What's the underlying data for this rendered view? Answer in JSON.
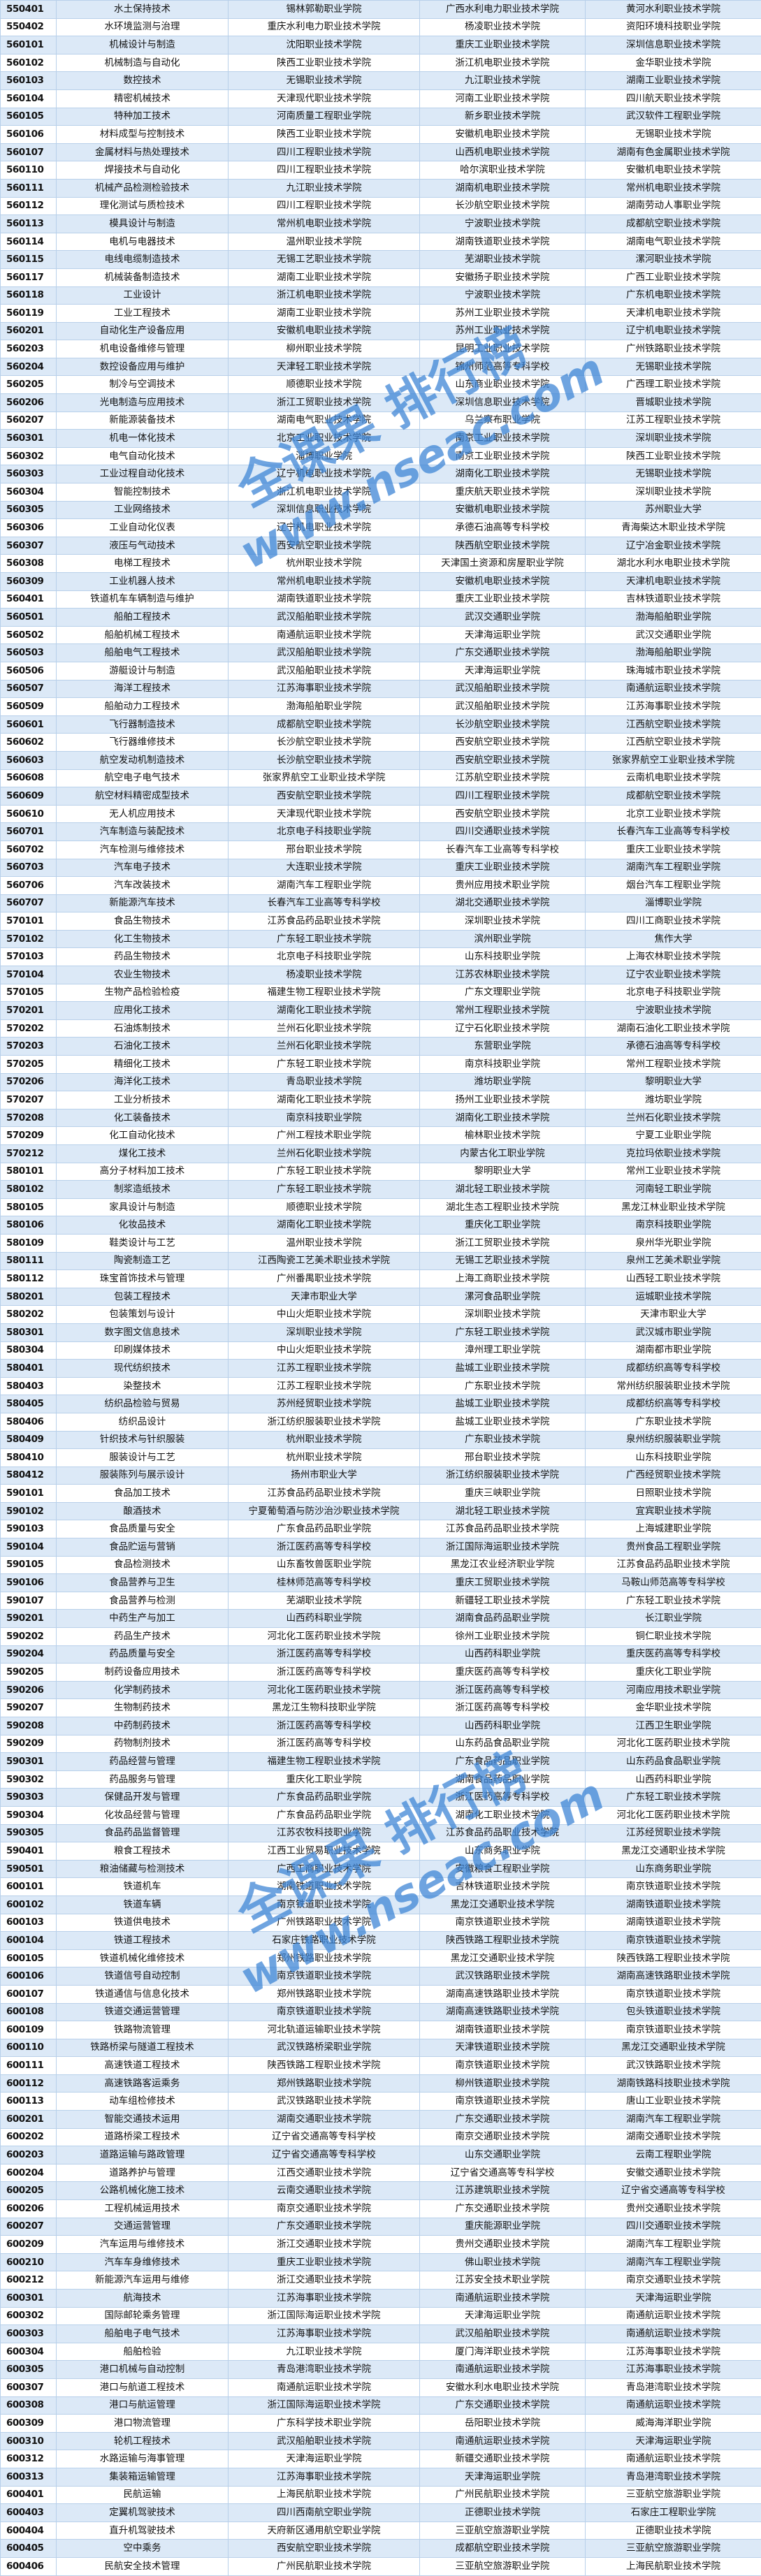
{
  "watermark": {
    "line1": "全课果 排行榜",
    "line2": "www.nseac.com",
    "color": "#3f86d6"
  },
  "colors": {
    "row_alt": "#dce9f7",
    "row": "#ffffff",
    "border": "#b8d0ea"
  },
  "rows": [
    [
      "550401",
      "水土保持技术",
      "锡林郭勒职业学院",
      "广西水利电力职业技术学院",
      "黄河水利职业技术学院"
    ],
    [
      "550402",
      "水环境监测与治理",
      "重庆水利电力职业技术学院",
      "杨凌职业技术学院",
      "资阳环境科技职业学院"
    ],
    [
      "560101",
      "机械设计与制造",
      "沈阳职业技术学院",
      "重庆工业职业技术学院",
      "深圳信息职业技术学院"
    ],
    [
      "560102",
      "机械制造与自动化",
      "陕西工业职业技术学院",
      "浙江机电职业技术学院",
      "金华职业技术学院"
    ],
    [
      "560103",
      "数控技术",
      "无锡职业技术学院",
      "九江职业技术学院",
      "湖南工业职业技术学院"
    ],
    [
      "560104",
      "精密机械技术",
      "天津现代职业技术学院",
      "河南工业职业技术学院",
      "四川航天职业技术学院"
    ],
    [
      "560105",
      "特种加工技术",
      "河南质量工程职业学院",
      "新乡职业技术学院",
      "武汉软件工程职业学院"
    ],
    [
      "560106",
      "材料成型与控制技术",
      "陕西工业职业技术学院",
      "安徽机电职业技术学院",
      "无锡职业技术学院"
    ],
    [
      "560107",
      "金属材料与热处理技术",
      "四川工程职业技术学院",
      "山西机电职业技术学院",
      "湖南有色金属职业技术学院"
    ],
    [
      "560110",
      "焊接技术与自动化",
      "四川工程职业技术学院",
      "哈尔滨职业技术学院",
      "安徽机电职业技术学院"
    ],
    [
      "560111",
      "机械产品检测检验技术",
      "九江职业技术学院",
      "湖南机电职业技术学院",
      "常州机电职业技术学院"
    ],
    [
      "560112",
      "理化测试与质检技术",
      "四川工程职业技术学院",
      "长沙航空职业技术学院",
      "湖南劳动人事职业学院"
    ],
    [
      "560113",
      "模具设计与制造",
      "常州机电职业技术学院",
      "宁波职业技术学院",
      "成都航空职业技术学院"
    ],
    [
      "560114",
      "电机与电器技术",
      "温州职业技术学院",
      "湖南铁道职业技术学院",
      "湖南电气职业技术学院"
    ],
    [
      "560115",
      "电线电缆制造技术",
      "无锡工艺职业技术学院",
      "芜湖职业技术学院",
      "漯河职业技术学院"
    ],
    [
      "560117",
      "机械装备制造技术",
      "湖南工业职业技术学院",
      "安徽扬子职业技术学院",
      "广西工业职业技术学院"
    ],
    [
      "560118",
      "工业设计",
      "浙江机电职业技术学院",
      "宁波职业技术学院",
      "广东机电职业技术学院"
    ],
    [
      "560119",
      "工业工程技术",
      "湖南工业职业技术学院",
      "苏州工业职业技术学院",
      "天津机电职业技术学院"
    ],
    [
      "560201",
      "自动化生产设备应用",
      "安徽机电职业技术学院",
      "苏州工业职业技术学院",
      "辽宁机电职业技术学院"
    ],
    [
      "560203",
      "机电设备维修与管理",
      "柳州职业技术学院",
      "昆明工业职业技术学院",
      "广州铁路职业技术学院"
    ],
    [
      "560204",
      "数控设备应用与维护",
      "天津轻工职业技术学院",
      "锦州师范高等专科学校",
      "无锡职业技术学院"
    ],
    [
      "560205",
      "制冷与空调技术",
      "顺德职业技术学院",
      "山东商业职业技术学院",
      "广西理工职业技术学院"
    ],
    [
      "560206",
      "光电制造与应用技术",
      "浙江工贸职业技术学院",
      "深圳信息职业技术学院",
      "晋城职业技术学院"
    ],
    [
      "560207",
      "新能源装备技术",
      "湖南电气职业技术学院",
      "乌兰察布职业学院",
      "江苏工程职业技术学院"
    ],
    [
      "560301",
      "机电一体化技术",
      "北京工业职业技术学院",
      "南京工业职业技术学院",
      "深圳职业技术学院"
    ],
    [
      "560302",
      "电气自动化技术",
      "淄博职业学院",
      "南京工业职业技术学院",
      "陕西工业职业技术学院"
    ],
    [
      "560303",
      "工业过程自动化技术",
      "辽宁机电职业技术学院",
      "湖南化工职业技术学院",
      "无锡职业技术学院"
    ],
    [
      "560304",
      "智能控制技术",
      "浙江机电职业技术学院",
      "重庆航天职业技术学院",
      "深圳职业技术学院"
    ],
    [
      "560305",
      "工业网络技术",
      "深圳信息职业技术学院",
      "安徽机电职业技术学院",
      "苏州职业大学"
    ],
    [
      "560306",
      "工业自动化仪表",
      "辽宁机电职业技术学院",
      "承德石油高等专科学校",
      "青海柴达木职业技术学院"
    ],
    [
      "560307",
      "液压与气动技术",
      "西安航空职业技术学院",
      "陕西航空职业技术学院",
      "辽宁冶金职业技术学院"
    ],
    [
      "560308",
      "电梯工程技术",
      "杭州职业技术学院",
      "天津国土资源和房屋职业学院",
      "湖北水利水电职业技术学院"
    ],
    [
      "560309",
      "工业机器人技术",
      "常州机电职业技术学院",
      "安徽机电职业技术学院",
      "天津机电职业技术学院"
    ],
    [
      "560401",
      "铁道机车车辆制造与维护",
      "湖南铁道职业技术学院",
      "重庆工业职业技术学院",
      "吉林铁道职业技术学院"
    ],
    [
      "560501",
      "船舶工程技术",
      "武汉船舶职业技术学院",
      "武汉交通职业学院",
      "渤海船舶职业学院"
    ],
    [
      "560502",
      "船舶机械工程技术",
      "南通航运职业技术学院",
      "天津海运职业学院",
      "武汉交通职业学院"
    ],
    [
      "560503",
      "船舶电气工程技术",
      "武汉船舶职业技术学院",
      "广东交通职业技术学院",
      "渤海船舶职业学院"
    ],
    [
      "560506",
      "游艇设计与制造",
      "武汉船舶职业技术学院",
      "天津海运职业学院",
      "珠海城市职业技术学院"
    ],
    [
      "560507",
      "海洋工程技术",
      "江苏海事职业技术学院",
      "武汉船舶职业技术学院",
      "南通航运职业技术学院"
    ],
    [
      "560509",
      "船舶动力工程技术",
      "渤海船舶职业学院",
      "武汉船舶职业技术学院",
      "江苏海事职业技术学院"
    ],
    [
      "560601",
      "飞行器制造技术",
      "成都航空职业技术学院",
      "长沙航空职业技术学院",
      "江西航空职业技术学院"
    ],
    [
      "560602",
      "飞行器维修技术",
      "长沙航空职业技术学院",
      "西安航空职业技术学院",
      "江西航空职业技术学院"
    ],
    [
      "560603",
      "航空发动机制造技术",
      "长沙航空职业技术学院",
      "西安航空职业技术学院",
      "张家界航空工业职业技术学院"
    ],
    [
      "560608",
      "航空电子电气技术",
      "张家界航空工业职业技术学院",
      "江苏航空职业技术学院",
      "云南机电职业技术学院"
    ],
    [
      "560609",
      "航空材料精密成型技术",
      "西安航空职业技术学院",
      "四川工程职业技术学院",
      "成都航空职业技术学院"
    ],
    [
      "560610",
      "无人机应用技术",
      "天津现代职业技术学院",
      "西安航空职业技术学院",
      "北京工业职业技术学院"
    ],
    [
      "560701",
      "汽车制造与装配技术",
      "北京电子科技职业学院",
      "四川交通职业技术学院",
      "长春汽车工业高等专科学校"
    ],
    [
      "560702",
      "汽车检测与维修技术",
      "邢台职业技术学院",
      "长春汽车工业高等专科学校",
      "重庆工业职业技术学院"
    ],
    [
      "560703",
      "汽车电子技术",
      "大连职业技术学院",
      "重庆工业职业技术学院",
      "湖南汽车工程职业学院"
    ],
    [
      "560706",
      "汽车改装技术",
      "湖南汽车工程职业学院",
      "贵州应用技术职业学院",
      "烟台汽车工程职业学院"
    ],
    [
      "560707",
      "新能源汽车技术",
      "长春汽车工业高等专科学校",
      "湖北交通职业技术学院",
      "淄博职业学院"
    ],
    [
      "570101",
      "食品生物技术",
      "江苏食品药品职业技术学院",
      "深圳职业技术学院",
      "四川工商职业技术学院"
    ],
    [
      "570102",
      "化工生物技术",
      "广东轻工职业技术学院",
      "滨州职业学院",
      "焦作大学"
    ],
    [
      "570103",
      "药品生物技术",
      "北京电子科技职业学院",
      "山东科技职业学院",
      "上海农林职业技术学院"
    ],
    [
      "570104",
      "农业生物技术",
      "杨凌职业技术学院",
      "江苏农林职业技术学院",
      "辽宁农业职业技术学院"
    ],
    [
      "570105",
      "生物产品检验检疫",
      "福建生物工程职业技术学院",
      "广东文理职业学院",
      "北京电子科技职业学院"
    ],
    [
      "570201",
      "应用化工技术",
      "湖南化工职业技术学院",
      "常州工程职业技术学院",
      "宁波职业技术学院"
    ],
    [
      "570202",
      "石油炼制技术",
      "兰州石化职业技术学院",
      "辽宁石化职业技术学院",
      "湖南石油化工职业技术学院"
    ],
    [
      "570203",
      "石油化工技术",
      "兰州石化职业技术学院",
      "东营职业学院",
      "承德石油高等专科学校"
    ],
    [
      "570205",
      "精细化工技术",
      "广东轻工职业技术学院",
      "南京科技职业学院",
      "常州工程职业技术学院"
    ],
    [
      "570206",
      "海洋化工技术",
      "青岛职业技术学院",
      "潍坊职业学院",
      "黎明职业大学"
    ],
    [
      "570207",
      "工业分析技术",
      "湖南化工职业技术学院",
      "扬州工业职业技术学院",
      "潍坊职业学院"
    ],
    [
      "570208",
      "化工装备技术",
      "南京科技职业学院",
      "湖南化工职业技术学院",
      "兰州石化职业技术学院"
    ],
    [
      "570209",
      "化工自动化技术",
      "广州工程技术职业学院",
      "榆林职业技术学院",
      "宁夏工业职业学院"
    ],
    [
      "570212",
      "煤化工技术",
      "兰州石化职业技术学院",
      "内蒙古化工职业学院",
      "克拉玛依职业技术学院"
    ],
    [
      "580101",
      "高分子材料加工技术",
      "广东轻工职业技术学院",
      "黎明职业大学",
      "常州工业职业技术学院"
    ],
    [
      "580102",
      "制浆造纸技术",
      "广东轻工职业技术学院",
      "湖北轻工职业技术学院",
      "河南轻工职业学院"
    ],
    [
      "580105",
      "家具设计与制造",
      "顺德职业技术学院",
      "湖北生态工程职业技术学院",
      "黑龙江林业职业技术学院"
    ],
    [
      "580106",
      "化妆品技术",
      "湖南化工职业技术学院",
      "重庆化工职业学院",
      "南京科技职业学院"
    ],
    [
      "580109",
      "鞋类设计与工艺",
      "温州职业技术学院",
      "浙江工贸职业技术学院",
      "泉州华光职业学院"
    ],
    [
      "580111",
      "陶瓷制造工艺",
      "江西陶瓷工艺美术职业技术学院",
      "无锡工艺职业技术学院",
      "泉州工艺美术职业学院"
    ],
    [
      "580112",
      "珠宝首饰技术与管理",
      "广州番禺职业技术学院",
      "上海工商职业技术学院",
      "山西轻工职业技术学院"
    ],
    [
      "580201",
      "包装工程技术",
      "天津市职业大学",
      "漯河食品职业学院",
      "运城职业技术学院"
    ],
    [
      "580202",
      "包装策划与设计",
      "中山火炬职业技术学院",
      "深圳职业技术学院",
      "天津市职业大学"
    ],
    [
      "580301",
      "数字图文信息技术",
      "深圳职业技术学院",
      "广东轻工职业技术学院",
      "武汉城市职业学院"
    ],
    [
      "580304",
      "印刷媒体技术",
      "中山火炬职业技术学院",
      "漳州理工职业学院",
      "湖南都市职业学院"
    ],
    [
      "580401",
      "现代纺织技术",
      "江苏工程职业技术学院",
      "盐城工业职业技术学院",
      "成都纺织高等专科学校"
    ],
    [
      "580403",
      "染整技术",
      "江苏工程职业技术学院",
      "广东职业技术学院",
      "常州纺织服装职业技术学院"
    ],
    [
      "580405",
      "纺织品检验与贸易",
      "苏州经贸职业技术学院",
      "盐城工业职业技术学院",
      "成都纺织高等专科学校"
    ],
    [
      "580406",
      "纺织品设计",
      "浙江纺织服装职业技术学院",
      "盐城工业职业技术学院",
      "广东职业技术学院"
    ],
    [
      "580409",
      "针织技术与针织服装",
      "杭州职业技术学院",
      "广东职业技术学院",
      "泉州纺织服装职业学院"
    ],
    [
      "580410",
      "服装设计与工艺",
      "杭州职业技术学院",
      "邢台职业技术学院",
      "山东科技职业学院"
    ],
    [
      "580412",
      "服装陈列与展示设计",
      "扬州市职业大学",
      "浙江纺织服装职业技术学院",
      "广西经贸职业技术学院"
    ],
    [
      "590101",
      "食品加工技术",
      "江苏食品药品职业技术学院",
      "重庆三峡职业学院",
      "日照职业技术学院"
    ],
    [
      "590102",
      "酿酒技术",
      "宁夏葡萄酒与防沙治沙职业技术学院",
      "湖北轻工职业技术学院",
      "宜宾职业技术学院"
    ],
    [
      "590103",
      "食品质量与安全",
      "广东食品药品职业学院",
      "江苏食品药品职业技术学院",
      "上海城建职业学院"
    ],
    [
      "590104",
      "食品贮运与营销",
      "浙江医药高等专科学校",
      "浙江国际海运职业技术学院",
      "贵州食品工程职业学院"
    ],
    [
      "590105",
      "食品检测技术",
      "山东畜牧兽医职业学院",
      "黑龙江农业经济职业学院",
      "江苏食品药品职业技术学院"
    ],
    [
      "590106",
      "食品营养与卫生",
      "桂林师范高等专科学校",
      "重庆工贸职业技术学院",
      "马鞍山师范高等专科学校"
    ],
    [
      "590107",
      "食品营养与检测",
      "芜湖职业技术学院",
      "新疆轻工职业技术学院",
      "广东轻工职业技术学院"
    ],
    [
      "590201",
      "中药生产与加工",
      "山西药科职业学院",
      "湖南食品药品职业学院",
      "长江职业学院"
    ],
    [
      "590202",
      "药品生产技术",
      "河北化工医药职业技术学院",
      "徐州工业职业技术学院",
      "铜仁职业技术学院"
    ],
    [
      "590204",
      "药品质量与安全",
      "浙江医药高等专科学校",
      "山西药科职业学院",
      "重庆医药高等专科学校"
    ],
    [
      "590205",
      "制药设备应用技术",
      "浙江医药高等专科学校",
      "重庆医药高等专科学校",
      "重庆化工职业学院"
    ],
    [
      "590206",
      "化学制药技术",
      "河北化工医药职业技术学院",
      "浙江医药高等专科学校",
      "河南应用技术职业学院"
    ],
    [
      "590207",
      "生物制药技术",
      "黑龙江生物科技职业学院",
      "浙江医药高等专科学校",
      "金华职业技术学院"
    ],
    [
      "590208",
      "中药制药技术",
      "浙江医药高等专科学校",
      "山西药科职业学院",
      "江西卫生职业学院"
    ],
    [
      "590209",
      "药物制剂技术",
      "浙江医药高等专科学校",
      "山东药品食品职业学院",
      "河北化工医药职业技术学院"
    ],
    [
      "590301",
      "药品经营与管理",
      "福建生物工程职业技术学院",
      "广东食品药品职业学院",
      "山东药品食品职业学院"
    ],
    [
      "590302",
      "药品服务与管理",
      "重庆化工职业学院",
      "湖南食品药品职业学院",
      "山西药科职业学院"
    ],
    [
      "590303",
      "保健品开发与管理",
      "广东食品药品职业学院",
      "浙江医药高等专科学校",
      "广东轻工职业技术学院"
    ],
    [
      "590304",
      "化妆品经营与管理",
      "广东食品药品职业学院",
      "湖南化工职业技术学院",
      "河北化工医药职业技术学院"
    ],
    [
      "590305",
      "食品药品监督管理",
      "江苏农牧科技职业学院",
      "江苏食品药品职业技术学院",
      "江苏经贸职业技术学院"
    ],
    [
      "590401",
      "粮食工程技术",
      "江西工业贸易职业技术学院",
      "山东商务职业学院",
      "黑龙江交通职业技术学院"
    ],
    [
      "590501",
      "粮油储藏与检测技术",
      "广西工商职业技术学院",
      "安徽粮食工程职业学院",
      "山东商务职业学院"
    ],
    [
      "600101",
      "铁道机车",
      "湖南铁道职业技术学院",
      "吉林铁道职业技术学院",
      "南京铁道职业技术学院"
    ],
    [
      "600102",
      "铁道车辆",
      "南京铁道职业技术学院",
      "黑龙江交通职业技术学院",
      "湖南铁道职业技术学院"
    ],
    [
      "600103",
      "铁道供电技术",
      "广州铁路职业技术学院",
      "南京铁道职业技术学院",
      "湖南铁道职业技术学院"
    ],
    [
      "600104",
      "铁道工程技术",
      "石家庄铁路职业技术学院",
      "陕西铁路工程职业技术学院",
      "南京铁道职业技术学院"
    ],
    [
      "600105",
      "铁道机械化维修技术",
      "郑州铁路职业技术学院",
      "黑龙江交通职业技术学院",
      "陕西铁路工程职业技术学院"
    ],
    [
      "600106",
      "铁道信号自动控制",
      "南京铁道职业技术学院",
      "武汉铁路职业技术学院",
      "湖南高速铁路职业技术学院"
    ],
    [
      "600107",
      "铁道通信与信息化技术",
      "郑州铁路职业技术学院",
      "湖南高速铁路职业技术学院",
      "南京铁道职业技术学院"
    ],
    [
      "600108",
      "铁道交通运营管理",
      "南京铁道职业技术学院",
      "湖南高速铁路职业技术学院",
      "包头铁道职业技术学院"
    ],
    [
      "600109",
      "铁路物流管理",
      "河北轨道运输职业技术学院",
      "湖南铁道职业技术学院",
      "南京铁道职业技术学院"
    ],
    [
      "600110",
      "铁路桥梁与隧道工程技术",
      "武汉铁路桥梁职业学院",
      "天津铁道职业技术学院",
      "黑龙江交通职业技术学院"
    ],
    [
      "600111",
      "高速铁道工程技术",
      "陕西铁路工程职业技术学院",
      "南京铁道职业技术学院",
      "武汉铁路职业技术学院"
    ],
    [
      "600112",
      "高速铁路客运乘务",
      "郑州铁路职业技术学院",
      "柳州铁道职业技术学院",
      "湖南铁路科技职业技术学院"
    ],
    [
      "600113",
      "动车组检修技术",
      "武汉铁路职业技术学院",
      "南京铁道职业技术学院",
      "唐山工业职业技术学院"
    ],
    [
      "600201",
      "智能交通技术运用",
      "湖南交通职业技术学院",
      "广东交通职业技术学院",
      "湖南汽车工程职业学院"
    ],
    [
      "600202",
      "道路桥梁工程技术",
      "辽宁省交通高等专科学校",
      "南京交通职业技术学院",
      "湖南交通职业技术学院"
    ],
    [
      "600203",
      "道路运输与路政管理",
      "辽宁省交通高等专科学校",
      "山东交通职业学院",
      "云南工程职业学院"
    ],
    [
      "600204",
      "道路养护与管理",
      "江西交通职业技术学院",
      "辽宁省交通高等专科学校",
      "安徽交通职业技术学院"
    ],
    [
      "600205",
      "公路机械化施工技术",
      "云南交通职业技术学院",
      "江苏建筑职业技术学院",
      "辽宁省交通高等专科学校"
    ],
    [
      "600206",
      "工程机械运用技术",
      "南京交通职业技术学院",
      "广东交通职业技术学院",
      "贵州交通职业技术学院"
    ],
    [
      "600207",
      "交通运营管理",
      "广东交通职业技术学院",
      "重庆能源职业学院",
      "四川交通职业技术学院"
    ],
    [
      "600209",
      "汽车运用与维修技术",
      "浙江交通职业技术学院",
      "贵州交通职业技术学院",
      "湖南汽车工程职业学院"
    ],
    [
      "600210",
      "汽车车身维修技术",
      "重庆工业职业技术学院",
      "佛山职业技术学院",
      "湖南汽车工程职业学院"
    ],
    [
      "600212",
      "新能源汽车运用与维修",
      "浙江交通职业技术学院",
      "江苏安全技术职业学院",
      "南京交通职业技术学院"
    ],
    [
      "600301",
      "航海技术",
      "江苏海事职业技术学院",
      "南通航运职业技术学院",
      "天津海运职业学院"
    ],
    [
      "600302",
      "国际邮轮乘务管理",
      "浙江国际海运职业技术学院",
      "天津海运职业学院",
      "南通航运职业技术学院"
    ],
    [
      "600303",
      "船舶电子电气技术",
      "江苏海事职业技术学院",
      "武汉船舶职业技术学院",
      "南通航运职业技术学院"
    ],
    [
      "600304",
      "船舶检验",
      "九江职业技术学院",
      "厦门海洋职业技术学院",
      "江苏海事职业技术学院"
    ],
    [
      "600305",
      "港口机械与自动控制",
      "青岛港湾职业技术学院",
      "南通航运职业技术学院",
      "江苏海事职业技术学院"
    ],
    [
      "600307",
      "港口与航道工程技术",
      "南通航运职业技术学院",
      "安徽水利水电职业技术学院",
      "青岛港湾职业技术学院"
    ],
    [
      "600308",
      "港口与航运管理",
      "浙江国际海运职业技术学院",
      "广东交通职业技术学院",
      "南通航运职业技术学院"
    ],
    [
      "600309",
      "港口物流管理",
      "广东科学技术职业学院",
      "岳阳职业技术学院",
      "威海海洋职业学院"
    ],
    [
      "600310",
      "轮机工程技术",
      "武汉船舶职业技术学院",
      "南通航运职业技术学院",
      "天津海运职业学院"
    ],
    [
      "600312",
      "水路运输与海事管理",
      "天津海运职业学院",
      "新疆交通职业技术学院",
      "南通航运职业技术学院"
    ],
    [
      "600313",
      "集装箱运输管理",
      "江苏海事职业技术学院",
      "天津海运职业学院",
      "青岛港湾职业技术学院"
    ],
    [
      "600401",
      "民航运输",
      "上海民航职业技术学院",
      "广州民航职业技术学院",
      "三亚航空旅游职业学院"
    ],
    [
      "600403",
      "定翼机驾驶技术",
      "四川西南航空职业学院",
      "正德职业技术学院",
      "石家庄工程职业学院"
    ],
    [
      "600404",
      "直升机驾驶技术",
      "天府新区通用航空职业学院",
      "三亚航空旅游职业学院",
      "正德职业技术学院"
    ],
    [
      "600405",
      "空中乘务",
      "西安航空职业技术学院",
      "成都航空职业技术学院",
      "三亚航空旅游职业学院"
    ],
    [
      "600406",
      "民航安全技术管理",
      "广州民航职业技术学院",
      "三亚航空旅游职业学院",
      "上海民航职业技术学院"
    ]
  ]
}
